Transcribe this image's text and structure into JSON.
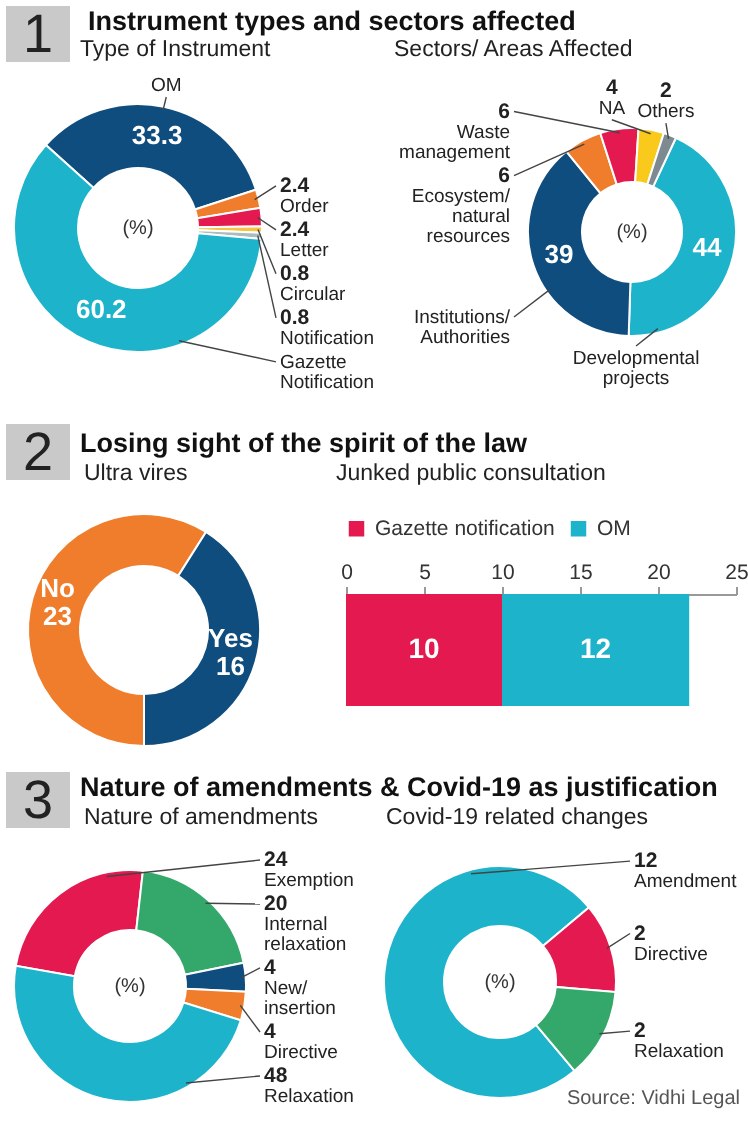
{
  "chart_data": [
    {
      "type": "donut",
      "title": "Instrument types and sectors affected",
      "subtitle": "Type of Instrument",
      "categories": [
        "OM",
        "Order",
        "Letter",
        "Circular",
        "Notification",
        "Gazette Notification"
      ],
      "values": [
        33.3,
        2.4,
        2.4,
        0.8,
        0.8,
        60.2
      ],
      "colors": [
        "#0e4d7e",
        "#f07d2c",
        "#e3194f",
        "#f6c445",
        "#a9bcbf",
        "#1db3cb"
      ],
      "data_labels": true,
      "annotations": [
        "1",
        "(%)"
      ]
    },
    {
      "type": "donut",
      "title": "Sectors/ Areas Affected",
      "categories": [
        "Developmental projects",
        "Institutions/ Authorities",
        "Ecosystem/ natural resources",
        "Waste management",
        "NA",
        "Others"
      ],
      "values": [
        44,
        39,
        6,
        6,
        4,
        2
      ],
      "colors": [
        "#1db3cb",
        "#0e4d7e",
        "#f07d2c",
        "#e3194f",
        "#f9c91c",
        "#7d8a92"
      ],
      "data_labels": true,
      "annotations": [
        "(%)"
      ]
    },
    {
      "type": "donut",
      "title": "Losing sight of the spirit of the law",
      "subtitle": "Ultra vires",
      "categories": [
        "No",
        "Yes"
      ],
      "values": [
        23,
        16
      ],
      "colors": [
        "#f07d2c",
        "#0e4d7e"
      ],
      "data_labels": true,
      "annotations": [
        "2"
      ]
    },
    {
      "type": "bar",
      "title": "Junked public consultation",
      "orientation": "horizontal",
      "stacked": true,
      "categories": [
        null
      ],
      "series": [
        {
          "name": "Gazette notification",
          "color": "#e3194f",
          "values": [
            10
          ]
        },
        {
          "name": "OM",
          "color": "#1db3cb",
          "values": [
            12
          ]
        }
      ],
      "xlim": [
        0,
        25
      ],
      "xticks": [
        0,
        5,
        10,
        15,
        20,
        25
      ],
      "legend": "top left",
      "data_labels": true
    },
    {
      "type": "donut",
      "title": "Nature of amendments & Covid-19 as justification",
      "subtitle": "Nature of amendments",
      "categories": [
        "Exemption",
        "Internal relaxation",
        "New/ insertion",
        "Directive",
        "Relaxation"
      ],
      "values": [
        24,
        20,
        4,
        4,
        48
      ],
      "colors": [
        "#e3194f",
        "#34a86b",
        "#0e4d7e",
        "#f07d2c",
        "#1db3cb"
      ],
      "data_labels": true,
      "annotations": [
        "3",
        "(%)"
      ]
    },
    {
      "type": "donut",
      "title": "Covid-19 related changes",
      "categories": [
        "Amendment",
        "Directive",
        "Relaxation"
      ],
      "values": [
        12,
        2,
        2
      ],
      "colors": [
        "#1db3cb",
        "#e3194f",
        "#34a86b"
      ],
      "data_labels": true,
      "annotations": [
        "(%)",
        "Source: Vidhi Legal"
      ]
    }
  ]
}
